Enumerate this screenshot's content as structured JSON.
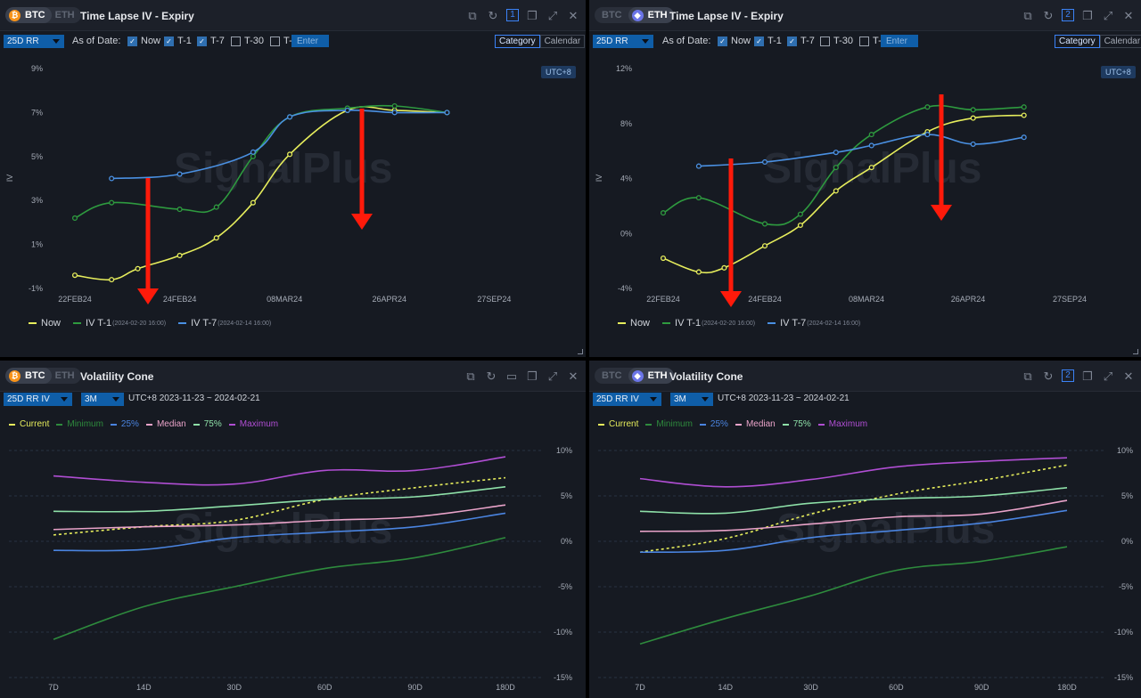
{
  "colors": {
    "now": "#e6ed5c",
    "t1": "#2e9a3f",
    "t7": "#4a90e2",
    "current": "#e6ed5c",
    "minimum": "#2e8b3d",
    "p25": "#4a84e0",
    "median": "#e9a3c9",
    "p75": "#8ee0a8",
    "maximum": "#b04ed3",
    "arrow": "#ff1a0a",
    "watermark": "#262b35"
  },
  "icons": [
    "open-external-icon",
    "refresh-icon",
    "layout-number-icon",
    "copy-icon",
    "expand-icon",
    "close-icon"
  ],
  "watermark": "SignalPlus",
  "top_panels": [
    {
      "tabs": [
        "BTC",
        "ETH"
      ],
      "active_tab": "BTC",
      "title": "Time Lapse IV - Expiry",
      "layout_num": "1",
      "select": "25D RR",
      "as_of": "As of Date:",
      "checks": [
        "Now",
        "T-1",
        "T-7",
        "T-30",
        "T-"
      ],
      "enter_placeholder": "Enter",
      "view_modes": [
        "Category",
        "Calendar"
      ],
      "active_view": "Category",
      "utc": "UTC+8",
      "ylabel": "IV",
      "legend": {
        "now": "Now",
        "t1": "IV T-1",
        "t1_date": "(2024-02-20 16:00)",
        "t7": "IV T-7",
        "t7_date": "(2024-02-14 16:00)"
      }
    },
    {
      "tabs": [
        "BTC",
        "ETH"
      ],
      "active_tab": "ETH",
      "title": "Time Lapse IV - Expiry",
      "layout_num": "2",
      "select": "25D RR",
      "as_of": "As of Date:",
      "checks": [
        "Now",
        "T-1",
        "T-7",
        "T-30",
        "T-"
      ],
      "enter_placeholder": "Enter",
      "view_modes": [
        "Category",
        "Calendar"
      ],
      "active_view": "Category",
      "utc": "UTC+8",
      "ylabel": "IV",
      "legend": {
        "now": "Now",
        "t1": "IV T-1",
        "t1_date": "(2024-02-20 16:00)",
        "t7": "IV T-7",
        "t7_date": "(2024-02-14 16:00)"
      }
    }
  ],
  "bottom_panels": [
    {
      "tabs": [
        "BTC",
        "ETH"
      ],
      "active_tab": "BTC",
      "title": "Volatility Cone",
      "select": "25D RR IV",
      "period": "3M",
      "range": "UTC+8 2023-11-23 ~ 2024-02-21",
      "legend": [
        "Current",
        "Minimum",
        "25%",
        "Median",
        "75%",
        "Maximum"
      ]
    },
    {
      "tabs": [
        "BTC",
        "ETH"
      ],
      "active_tab": "ETH",
      "title": "Volatility Cone",
      "layout_num": "2",
      "select": "25D RR IV",
      "period": "3M",
      "range": "UTC+8 2023-11-23 ~ 2024-02-21",
      "legend": [
        "Current",
        "Minimum",
        "25%",
        "Median",
        "75%",
        "Maximum"
      ]
    }
  ],
  "chart_data": [
    {
      "type": "line",
      "panel": "BTC Time Lapse IV - Expiry (25D RR)",
      "xticks": [
        "22FEB24",
        "24FEB24",
        "08MAR24",
        "26APR24",
        "27SEP24"
      ],
      "yticks": [
        "9%",
        "7%",
        "5%",
        "3%",
        "1%",
        "-1%"
      ],
      "ylim": [
        -1,
        9
      ],
      "ylabel": "IV",
      "series": [
        {
          "name": "Now",
          "x": [
            0,
            0.7,
            1.2,
            2,
            2.7,
            3.4,
            4.1,
            5.2,
            6.1,
            7.1
          ],
          "values": [
            -0.4,
            -0.6,
            -0.1,
            0.5,
            1.3,
            2.9,
            5.1,
            7.1,
            7.1,
            7.0
          ]
        },
        {
          "name": "IV T-1",
          "x": [
            0,
            0.7,
            2,
            2.7,
            3.4,
            4.1,
            5.2,
            6.1,
            7.1
          ],
          "values": [
            2.2,
            2.9,
            2.6,
            2.7,
            5.0,
            6.8,
            7.2,
            7.3,
            7.0
          ]
        },
        {
          "name": "IV T-7",
          "x": [
            0.7,
            2,
            3.4,
            4.1,
            5.2,
            6.1,
            7.1
          ],
          "values": [
            4.0,
            4.2,
            5.2,
            6.8,
            7.1,
            7.0,
            7.0
          ]
        }
      ]
    },
    {
      "type": "line",
      "panel": "ETH Time Lapse IV - Expiry (25D RR)",
      "xticks": [
        "22FEB24",
        "24FEB24",
        "08MAR24",
        "26APR24",
        "27SEP24"
      ],
      "yticks": [
        "12%",
        "8%",
        "4%",
        "0%",
        "-4%"
      ],
      "ylim": [
        -4,
        12
      ],
      "ylabel": "IV",
      "series": [
        {
          "name": "Now",
          "x": [
            0,
            0.7,
            1.2,
            2,
            2.7,
            3.4,
            4.1,
            5.2,
            6.1,
            7.1
          ],
          "values": [
            -1.8,
            -2.8,
            -2.5,
            -0.9,
            0.6,
            3.1,
            4.8,
            7.4,
            8.4,
            8.6
          ]
        },
        {
          "name": "IV T-1",
          "x": [
            0,
            0.7,
            2,
            2.7,
            3.4,
            4.1,
            5.2,
            6.1,
            7.1
          ],
          "values": [
            1.5,
            2.6,
            0.7,
            1.4,
            4.8,
            7.2,
            9.2,
            9.0,
            9.2
          ]
        },
        {
          "name": "IV T-7",
          "x": [
            0.7,
            2,
            3.4,
            4.1,
            5.2,
            6.1,
            7.1
          ],
          "values": [
            4.9,
            5.2,
            5.9,
            6.4,
            7.2,
            6.5,
            7.0
          ]
        }
      ]
    },
    {
      "type": "line",
      "panel": "BTC Volatility Cone (25D RR IV)",
      "categories": [
        "7D",
        "14D",
        "30D",
        "60D",
        "90D",
        "180D"
      ],
      "yticks": [
        "10%",
        "5%",
        "0%",
        "-5%",
        "-10%",
        "-15%"
      ],
      "ylim": [
        -15,
        10
      ],
      "series": [
        {
          "name": "Current",
          "style": "dashed",
          "values": [
            0.7,
            1.6,
            2.3,
            4.6,
            5.9,
            7.0
          ]
        },
        {
          "name": "Minimum",
          "values": [
            -10.8,
            -7.2,
            -5.0,
            -3.0,
            -1.8,
            0.4
          ]
        },
        {
          "name": "25%",
          "values": [
            -1.0,
            -0.9,
            0.4,
            1.0,
            1.6,
            3.1
          ]
        },
        {
          "name": "Median",
          "values": [
            1.3,
            1.6,
            1.8,
            2.3,
            2.7,
            4.0
          ]
        },
        {
          "name": "75%",
          "values": [
            3.3,
            3.3,
            3.9,
            4.6,
            4.9,
            6.0
          ]
        },
        {
          "name": "Maximum",
          "values": [
            7.2,
            6.5,
            6.3,
            7.8,
            7.8,
            9.3
          ]
        }
      ]
    },
    {
      "type": "line",
      "panel": "ETH Volatility Cone (25D RR IV)",
      "categories": [
        "7D",
        "14D",
        "30D",
        "60D",
        "90D",
        "180D"
      ],
      "yticks": [
        "10%",
        "5%",
        "0%",
        "-5%",
        "-10%",
        "-15%"
      ],
      "ylim": [
        -15,
        10
      ],
      "series": [
        {
          "name": "Current",
          "style": "dashed",
          "values": [
            -1.2,
            0.3,
            3.0,
            5.2,
            6.7,
            8.4
          ]
        },
        {
          "name": "Minimum",
          "values": [
            -11.3,
            -8.5,
            -6.0,
            -3.2,
            -2.2,
            -0.6
          ]
        },
        {
          "name": "25%",
          "values": [
            -1.2,
            -1.0,
            0.4,
            1.2,
            2.0,
            3.4
          ]
        },
        {
          "name": "Median",
          "values": [
            1.1,
            1.2,
            1.9,
            2.7,
            3.0,
            4.5
          ]
        },
        {
          "name": "75%",
          "values": [
            3.3,
            3.1,
            4.2,
            4.7,
            5.0,
            5.9
          ]
        },
        {
          "name": "Maximum",
          "values": [
            6.9,
            6.0,
            6.8,
            8.2,
            8.8,
            9.2
          ]
        }
      ]
    }
  ]
}
